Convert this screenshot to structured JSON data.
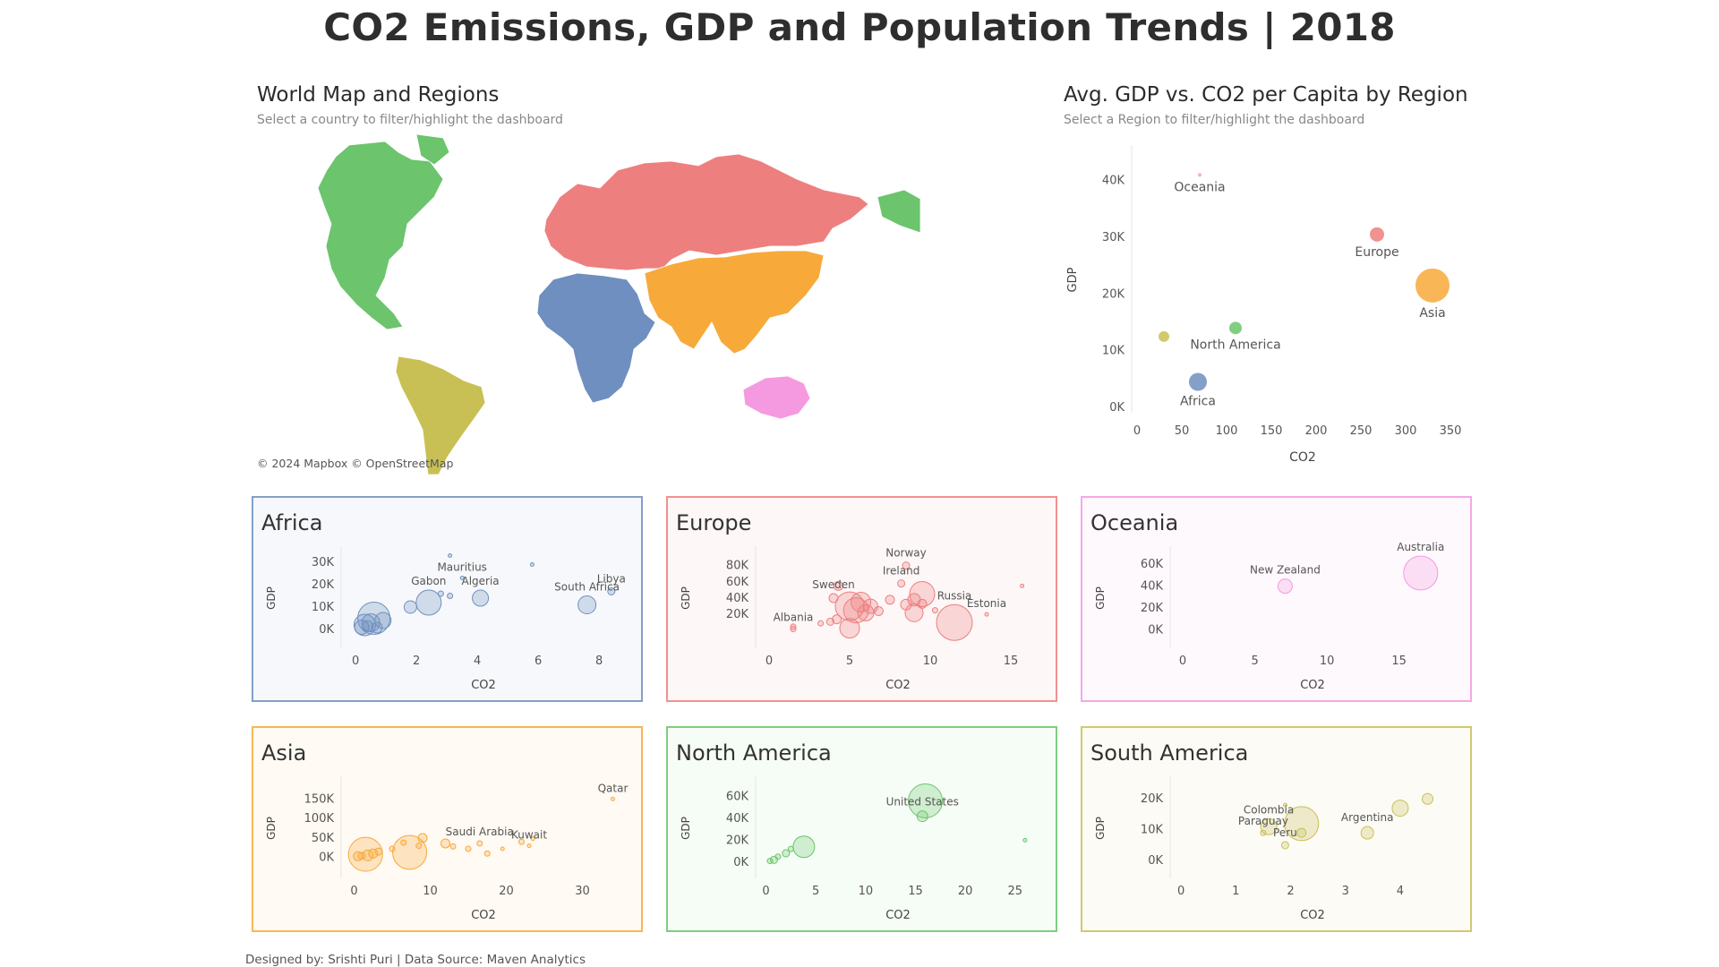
{
  "page": {
    "title": "CO2 Emissions, GDP and Population Trends | 2018",
    "footer": "Designed by: Srishti Puri | Data Source: Maven Analytics"
  },
  "map_section": {
    "title": "World Map and Regions",
    "subtitle": "Select a country to filter/highlight the dashboard",
    "credit": "© 2024 Mapbox  © OpenStreetMap"
  },
  "scatter_section": {
    "title": "Avg. GDP vs. CO2 per Capita by Region",
    "subtitle": "Select a Region to filter/highlight the dashboard"
  },
  "colors": {
    "Africa": "#6e8fbf",
    "Europe": "#ee7f7f",
    "Oceania": "#f59ae0",
    "Asia": "#f7a93a",
    "North America": "#6cc46c",
    "South America": "#c9c055"
  },
  "chart_data": [
    {
      "id": "region-overview",
      "type": "scatter",
      "xlabel": "CO2",
      "ylabel": "GDP",
      "xlim": [
        0,
        370
      ],
      "ylim": [
        0,
        45000
      ],
      "xticks": [
        0,
        50,
        100,
        150,
        200,
        250,
        300,
        350
      ],
      "yticks": [
        0,
        10000,
        20000,
        30000,
        40000
      ],
      "yticklabels": [
        "0K",
        "10K",
        "20K",
        "30K",
        "40K"
      ],
      "points": [
        {
          "name": "Oceania",
          "x": 70,
          "y": 41000,
          "size": 2,
          "label": "Oceania"
        },
        {
          "name": "Europe",
          "x": 268,
          "y": 30500,
          "size": 8,
          "label": "Europe"
        },
        {
          "name": "Asia",
          "x": 330,
          "y": 21500,
          "size": 19,
          "label": "Asia"
        },
        {
          "name": "North America",
          "x": 110,
          "y": 14000,
          "size": 7,
          "label": "North America"
        },
        {
          "name": "South America",
          "x": 30,
          "y": 12500,
          "size": 6,
          "label": ""
        },
        {
          "name": "Africa",
          "x": 68,
          "y": 4500,
          "size": 10,
          "label": "Africa"
        }
      ]
    },
    {
      "id": "africa",
      "region": "Africa",
      "type": "scatter",
      "title": "Africa",
      "xlabel": "CO2",
      "ylabel": "GDP",
      "xlim": [
        -0.3,
        8.7
      ],
      "ylim": [
        -6000,
        34000
      ],
      "xticks": [
        0,
        2,
        4,
        6,
        8
      ],
      "yticks": [
        0,
        10000,
        20000,
        30000
      ],
      "yticklabels": [
        "0K",
        "10K",
        "20K",
        "30K"
      ],
      "points": [
        {
          "x": 0.6,
          "y": 5000,
          "size": 18,
          "label": ""
        },
        {
          "x": 0.3,
          "y": 2000,
          "size": 12,
          "label": ""
        },
        {
          "x": 0.2,
          "y": 1000,
          "size": 8,
          "label": ""
        },
        {
          "x": 0.5,
          "y": 3000,
          "size": 10,
          "label": ""
        },
        {
          "x": 0.9,
          "y": 4000,
          "size": 9,
          "label": ""
        },
        {
          "x": 0.4,
          "y": 1500,
          "size": 6,
          "label": ""
        },
        {
          "x": 0.7,
          "y": 800,
          "size": 6,
          "label": ""
        },
        {
          "x": 1.8,
          "y": 10000,
          "size": 7,
          "label": ""
        },
        {
          "x": 2.4,
          "y": 12000,
          "size": 14,
          "label": "Gabon"
        },
        {
          "x": 2.8,
          "y": 16000,
          "size": 3,
          "label": ""
        },
        {
          "x": 3.1,
          "y": 15000,
          "size": 3,
          "label": ""
        },
        {
          "x": 3.1,
          "y": 33000,
          "size": 2,
          "label": ""
        },
        {
          "x": 3.5,
          "y": 23000,
          "size": 2,
          "label": "Mauritius"
        },
        {
          "x": 4.1,
          "y": 14000,
          "size": 9,
          "label": "Algeria"
        },
        {
          "x": 5.8,
          "y": 29000,
          "size": 2,
          "label": ""
        },
        {
          "x": 7.6,
          "y": 11000,
          "size": 10,
          "label": "South Africa"
        },
        {
          "x": 8.4,
          "y": 17000,
          "size": 4,
          "label": "Libya"
        }
      ]
    },
    {
      "id": "europe",
      "region": "Europe",
      "type": "scatter",
      "title": "Europe",
      "xlabel": "CO2",
      "ylabel": "GDP",
      "xlim": [
        -0.5,
        16.5
      ],
      "ylim": [
        -15000,
        95000
      ],
      "xticks": [
        0,
        5,
        10,
        15
      ],
      "yticks": [
        20000,
        40000,
        60000,
        80000
      ],
      "yticklabels": [
        "20K",
        "40K",
        "60K",
        "80K"
      ],
      "points": [
        {
          "x": 1.5,
          "y": 5000,
          "size": 3,
          "label": ""
        },
        {
          "x": 1.5,
          "y": 2000,
          "size": 3,
          "label": "Albania"
        },
        {
          "x": 3.2,
          "y": 9000,
          "size": 3,
          "label": ""
        },
        {
          "x": 3.8,
          "y": 11000,
          "size": 4,
          "label": ""
        },
        {
          "x": 4.2,
          "y": 14000,
          "size": 5,
          "label": ""
        },
        {
          "x": 4.0,
          "y": 40000,
          "size": 5,
          "label": "Sweden"
        },
        {
          "x": 4.3,
          "y": 55000,
          "size": 5,
          "label": ""
        },
        {
          "x": 5.0,
          "y": 3000,
          "size": 11,
          "label": ""
        },
        {
          "x": 5.0,
          "y": 30000,
          "size": 16,
          "label": ""
        },
        {
          "x": 5.4,
          "y": 25000,
          "size": 14,
          "label": ""
        },
        {
          "x": 5.7,
          "y": 35000,
          "size": 11,
          "label": ""
        },
        {
          "x": 6.0,
          "y": 22000,
          "size": 9,
          "label": ""
        },
        {
          "x": 6.3,
          "y": 30000,
          "size": 8,
          "label": ""
        },
        {
          "x": 6.8,
          "y": 24000,
          "size": 5,
          "label": ""
        },
        {
          "x": 7.5,
          "y": 38000,
          "size": 5,
          "label": ""
        },
        {
          "x": 8.2,
          "y": 58000,
          "size": 4,
          "label": "Ireland"
        },
        {
          "x": 8.5,
          "y": 80000,
          "size": 4,
          "label": "Norway"
        },
        {
          "x": 8.5,
          "y": 32000,
          "size": 6,
          "label": ""
        },
        {
          "x": 9.0,
          "y": 38000,
          "size": 7,
          "label": ""
        },
        {
          "x": 9.0,
          "y": 22000,
          "size": 10,
          "label": ""
        },
        {
          "x": 9.5,
          "y": 45000,
          "size": 14,
          "label": ""
        },
        {
          "x": 9.5,
          "y": 33000,
          "size": 5,
          "label": ""
        },
        {
          "x": 10.3,
          "y": 25000,
          "size": 3,
          "label": ""
        },
        {
          "x": 11.5,
          "y": 10000,
          "size": 20,
          "label": "Russia"
        },
        {
          "x": 13.5,
          "y": 20000,
          "size": 2,
          "label": "Estonia"
        },
        {
          "x": 15.7,
          "y": 55000,
          "size": 2,
          "label": ""
        }
      ]
    },
    {
      "id": "oceania",
      "region": "Oceania",
      "type": "scatter",
      "title": "Oceania",
      "xlabel": "CO2",
      "ylabel": "GDP",
      "xlim": [
        -0.5,
        18.5
      ],
      "ylim": [
        -12000,
        70000
      ],
      "xticks": [
        0,
        5,
        10,
        15
      ],
      "yticks": [
        0,
        20000,
        40000,
        60000
      ],
      "yticklabels": [
        "0K",
        "20K",
        "40K",
        "60K"
      ],
      "points": [
        {
          "x": 7.1,
          "y": 40000,
          "size": 8,
          "label": "New Zealand"
        },
        {
          "x": 16.5,
          "y": 52000,
          "size": 19,
          "label": "Australia"
        }
      ]
    },
    {
      "id": "asia",
      "region": "Asia",
      "type": "scatter",
      "title": "Asia",
      "xlabel": "CO2",
      "ylabel": "GDP",
      "xlim": [
        -1,
        35
      ],
      "ylim": [
        -40000,
        190000
      ],
      "xticks": [
        0,
        10,
        20,
        30
      ],
      "yticks": [
        0,
        50000,
        100000,
        150000
      ],
      "yticklabels": [
        "0K",
        "50K",
        "100K",
        "150K"
      ],
      "points": [
        {
          "x": 1.5,
          "y": 8000,
          "size": 19,
          "label": ""
        },
        {
          "x": 0.5,
          "y": 3000,
          "size": 5,
          "label": ""
        },
        {
          "x": 1.0,
          "y": 4000,
          "size": 4,
          "label": ""
        },
        {
          "x": 1.8,
          "y": 5000,
          "size": 6,
          "label": ""
        },
        {
          "x": 2.5,
          "y": 10000,
          "size": 5,
          "label": ""
        },
        {
          "x": 3.2,
          "y": 15000,
          "size": 4,
          "label": ""
        },
        {
          "x": 7.3,
          "y": 13000,
          "size": 19,
          "label": ""
        },
        {
          "x": 5.0,
          "y": 22000,
          "size": 3,
          "label": ""
        },
        {
          "x": 6.5,
          "y": 38000,
          "size": 3,
          "label": ""
        },
        {
          "x": 8.5,
          "y": 30000,
          "size": 3,
          "label": ""
        },
        {
          "x": 9.0,
          "y": 50000,
          "size": 5,
          "label": ""
        },
        {
          "x": 12.0,
          "y": 36000,
          "size": 5,
          "label": ""
        },
        {
          "x": 13.0,
          "y": 28000,
          "size": 3,
          "label": ""
        },
        {
          "x": 15.0,
          "y": 22000,
          "size": 3,
          "label": ""
        },
        {
          "x": 16.5,
          "y": 36000,
          "size": 3,
          "label": "Saudi Arabia"
        },
        {
          "x": 17.5,
          "y": 10000,
          "size": 3,
          "label": ""
        },
        {
          "x": 19.5,
          "y": 22000,
          "size": 2,
          "label": ""
        },
        {
          "x": 22.0,
          "y": 40000,
          "size": 3,
          "label": ""
        },
        {
          "x": 23.0,
          "y": 30000,
          "size": 2,
          "label": "Kuwait"
        },
        {
          "x": 23.5,
          "y": 48000,
          "size": 2,
          "label": ""
        },
        {
          "x": 34.0,
          "y": 150000,
          "size": 2,
          "label": "Qatar"
        }
      ]
    },
    {
      "id": "north-america",
      "region": "North America",
      "type": "scatter",
      "title": "North America",
      "xlabel": "CO2",
      "ylabel": "GDP",
      "xlim": [
        -0.5,
        27
      ],
      "ylim": [
        -10000,
        72000
      ],
      "xticks": [
        0,
        5,
        10,
        15,
        20,
        25
      ],
      "yticks": [
        0,
        20000,
        40000,
        60000
      ],
      "yticklabels": [
        "0K",
        "20K",
        "40K",
        "60K"
      ],
      "points": [
        {
          "x": 16.0,
          "y": 56000,
          "size": 19,
          "label": ""
        },
        {
          "x": 15.7,
          "y": 42000,
          "size": 6,
          "label": "United States"
        },
        {
          "x": 3.8,
          "y": 14000,
          "size": 12,
          "label": ""
        },
        {
          "x": 2.5,
          "y": 12000,
          "size": 3,
          "label": ""
        },
        {
          "x": 2.0,
          "y": 8000,
          "size": 4,
          "label": ""
        },
        {
          "x": 1.2,
          "y": 5000,
          "size": 3,
          "label": ""
        },
        {
          "x": 0.8,
          "y": 2000,
          "size": 4,
          "label": ""
        },
        {
          "x": 0.4,
          "y": 1000,
          "size": 3,
          "label": ""
        },
        {
          "x": 26.0,
          "y": 20000,
          "size": 2,
          "label": ""
        }
      ]
    },
    {
      "id": "south-america",
      "region": "South America",
      "type": "scatter",
      "title": "South America",
      "xlabel": "CO2",
      "ylabel": "GDP",
      "xlim": [
        -0.1,
        4.9
      ],
      "ylim": [
        -4000,
        25000
      ],
      "xticks": [
        0,
        1,
        2,
        3,
        4
      ],
      "yticks": [
        0,
        10000,
        20000
      ],
      "yticklabels": [
        "0K",
        "10K",
        "20K"
      ],
      "points": [
        {
          "x": 2.2,
          "y": 12000,
          "size": 19,
          "label": ""
        },
        {
          "x": 1.6,
          "y": 11000,
          "size": 9,
          "label": "Colombia"
        },
        {
          "x": 1.5,
          "y": 9000,
          "size": 3,
          "label": "Paraguay"
        },
        {
          "x": 1.9,
          "y": 5000,
          "size": 4,
          "label": "Peru"
        },
        {
          "x": 2.2,
          "y": 9000,
          "size": 5,
          "label": ""
        },
        {
          "x": 1.9,
          "y": 18000,
          "size": 2,
          "label": ""
        },
        {
          "x": 3.4,
          "y": 9000,
          "size": 7,
          "label": "Argentina"
        },
        {
          "x": 4.0,
          "y": 17000,
          "size": 9,
          "label": ""
        },
        {
          "x": 4.5,
          "y": 20000,
          "size": 6,
          "label": ""
        }
      ]
    }
  ]
}
